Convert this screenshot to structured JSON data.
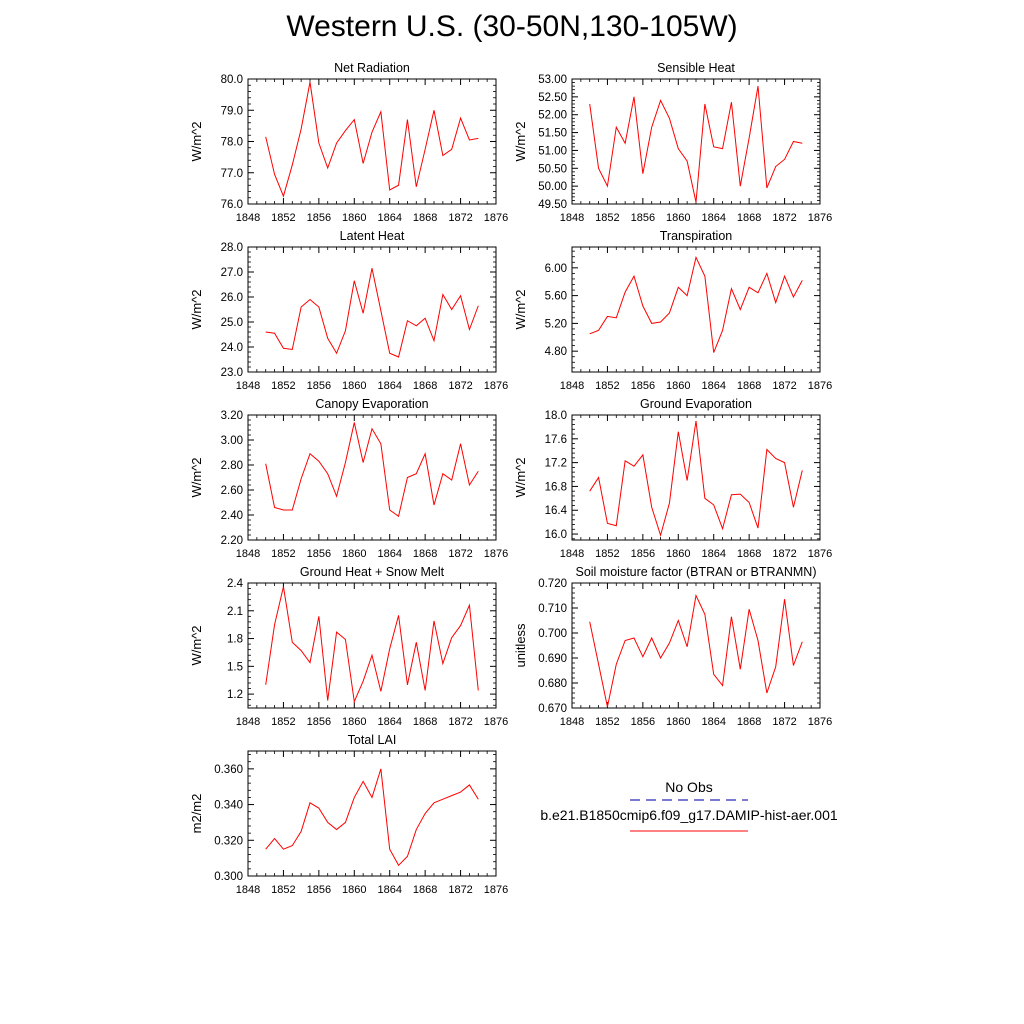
{
  "title": "Western U.S. (30-50N,130-105W)",
  "legend": {
    "obs_label": "No Obs",
    "model_label": "b.e21.B1850cmip6.f09_g17.DAMIP-hist-aer.001",
    "obs_color": "#2b2bb8",
    "model_color": "#ff0000"
  },
  "chart_data": [
    {
      "type": "line",
      "title": "Net Radiation",
      "ylabel": "W/m^2",
      "xlim": [
        1848,
        1876
      ],
      "xticks": [
        1848,
        1852,
        1856,
        1860,
        1864,
        1868,
        1872,
        1876
      ],
      "ylim": [
        76.0,
        80.0
      ],
      "yticks": [
        "76.0",
        "77.0",
        "78.0",
        "79.0",
        "80.0"
      ],
      "x": [
        1850,
        1851,
        1852,
        1853,
        1854,
        1855,
        1856,
        1857,
        1858,
        1859,
        1860,
        1861,
        1862,
        1863,
        1864,
        1865,
        1866,
        1867,
        1868,
        1869,
        1870,
        1871,
        1872,
        1873,
        1874
      ],
      "series": [
        {
          "values": [
            78.15,
            76.95,
            76.25,
            77.25,
            78.4,
            79.9,
            77.95,
            77.15,
            77.95,
            78.35,
            78.7,
            77.3,
            78.3,
            78.95,
            76.45,
            76.6,
            78.7,
            76.55,
            77.75,
            79.0,
            77.55,
            77.75,
            78.75,
            78.05,
            78.1
          ],
          "color": "#ff0000"
        }
      ]
    },
    {
      "type": "line",
      "title": "Sensible Heat",
      "ylabel": "W/m^2",
      "xlim": [
        1848,
        1876
      ],
      "xticks": [
        1848,
        1852,
        1856,
        1860,
        1864,
        1868,
        1872,
        1876
      ],
      "ylim": [
        49.5,
        53.0
      ],
      "yticks": [
        "49.50",
        "50.00",
        "50.50",
        "51.00",
        "51.50",
        "52.00",
        "52.50",
        "53.00"
      ],
      "x": [
        1850,
        1851,
        1852,
        1853,
        1854,
        1855,
        1856,
        1857,
        1858,
        1859,
        1860,
        1861,
        1862,
        1863,
        1864,
        1865,
        1866,
        1867,
        1868,
        1869,
        1870,
        1871,
        1872,
        1873,
        1874
      ],
      "series": [
        {
          "values": [
            52.3,
            50.5,
            50.0,
            51.65,
            51.2,
            52.5,
            50.35,
            51.65,
            52.4,
            51.9,
            51.05,
            50.7,
            49.55,
            52.3,
            51.1,
            51.05,
            52.35,
            50.0,
            51.35,
            52.8,
            49.95,
            50.55,
            50.75,
            51.25,
            51.2
          ],
          "color": "#ff0000"
        }
      ]
    },
    {
      "type": "line",
      "title": "Latent Heat",
      "ylabel": "W/m^2",
      "xlim": [
        1848,
        1876
      ],
      "xticks": [
        1848,
        1852,
        1856,
        1860,
        1864,
        1868,
        1872,
        1876
      ],
      "ylim": [
        23.0,
        28.0
      ],
      "yticks": [
        "23.0",
        "24.0",
        "25.0",
        "26.0",
        "27.0",
        "28.0"
      ],
      "x": [
        1850,
        1851,
        1852,
        1853,
        1854,
        1855,
        1856,
        1857,
        1858,
        1859,
        1860,
        1861,
        1862,
        1863,
        1864,
        1865,
        1866,
        1867,
        1868,
        1869,
        1870,
        1871,
        1872,
        1873,
        1874
      ],
      "series": [
        {
          "values": [
            24.6,
            24.55,
            23.95,
            23.9,
            25.6,
            25.9,
            25.6,
            24.35,
            23.75,
            24.65,
            26.65,
            25.35,
            27.15,
            25.45,
            23.75,
            23.6,
            25.05,
            24.85,
            25.15,
            24.25,
            26.1,
            25.5,
            26.05,
            24.7,
            25.65
          ],
          "color": "#ff0000"
        }
      ]
    },
    {
      "type": "line",
      "title": "Transpiration",
      "ylabel": "W/m^2",
      "xlim": [
        1848,
        1876
      ],
      "xticks": [
        1848,
        1852,
        1856,
        1860,
        1864,
        1868,
        1872,
        1876
      ],
      "ylim": [
        4.5,
        6.3
      ],
      "yticks": [
        "4.80",
        "5.20",
        "5.60",
        "6.00"
      ],
      "x": [
        1850,
        1851,
        1852,
        1853,
        1854,
        1855,
        1856,
        1857,
        1858,
        1859,
        1860,
        1861,
        1862,
        1863,
        1864,
        1865,
        1866,
        1867,
        1868,
        1869,
        1870,
        1871,
        1872,
        1873,
        1874
      ],
      "series": [
        {
          "values": [
            5.05,
            5.1,
            5.3,
            5.28,
            5.65,
            5.88,
            5.45,
            5.2,
            5.22,
            5.35,
            5.72,
            5.6,
            6.15,
            5.88,
            4.78,
            5.1,
            5.7,
            5.4,
            5.72,
            5.64,
            5.92,
            5.5,
            5.88,
            5.58,
            5.82
          ],
          "color": "#ff0000"
        }
      ]
    },
    {
      "type": "line",
      "title": "Canopy Evaporation",
      "ylabel": "W/m^2",
      "xlim": [
        1848,
        1876
      ],
      "xticks": [
        1848,
        1852,
        1856,
        1860,
        1864,
        1868,
        1872,
        1876
      ],
      "ylim": [
        2.2,
        3.2
      ],
      "yticks": [
        "2.20",
        "2.40",
        "2.60",
        "2.80",
        "3.00",
        "3.20"
      ],
      "x": [
        1850,
        1851,
        1852,
        1853,
        1854,
        1855,
        1856,
        1857,
        1858,
        1859,
        1860,
        1861,
        1862,
        1863,
        1864,
        1865,
        1866,
        1867,
        1868,
        1869,
        1870,
        1871,
        1872,
        1873,
        1874
      ],
      "series": [
        {
          "values": [
            2.81,
            2.46,
            2.44,
            2.44,
            2.69,
            2.89,
            2.83,
            2.73,
            2.55,
            2.82,
            3.14,
            2.82,
            3.09,
            2.97,
            2.44,
            2.39,
            2.7,
            2.73,
            2.89,
            2.48,
            2.73,
            2.68,
            2.97,
            2.64,
            2.75
          ],
          "color": "#ff0000"
        }
      ]
    },
    {
      "type": "line",
      "title": "Ground Evaporation",
      "ylabel": "W/m^2",
      "xlim": [
        1848,
        1876
      ],
      "xticks": [
        1848,
        1852,
        1856,
        1860,
        1864,
        1868,
        1872,
        1876
      ],
      "ylim": [
        15.9,
        18.0
      ],
      "yticks": [
        "16.0",
        "16.4",
        "16.8",
        "17.2",
        "17.6",
        "18.0"
      ],
      "x": [
        1850,
        1851,
        1852,
        1853,
        1854,
        1855,
        1856,
        1857,
        1858,
        1859,
        1860,
        1861,
        1862,
        1863,
        1864,
        1865,
        1866,
        1867,
        1868,
        1869,
        1870,
        1871,
        1872,
        1873,
        1874
      ],
      "series": [
        {
          "values": [
            16.72,
            16.95,
            16.18,
            16.14,
            17.23,
            17.14,
            17.33,
            16.45,
            15.98,
            16.52,
            17.72,
            16.9,
            17.9,
            16.6,
            16.49,
            16.09,
            16.66,
            16.67,
            16.53,
            16.1,
            17.42,
            17.27,
            17.2,
            16.45,
            17.07
          ],
          "color": "#ff0000"
        }
      ]
    },
    {
      "type": "line",
      "title": "Ground Heat + Snow Melt",
      "ylabel": "W/m^2",
      "xlim": [
        1848,
        1876
      ],
      "xticks": [
        1848,
        1852,
        1856,
        1860,
        1864,
        1868,
        1872,
        1876
      ],
      "ylim": [
        1.05,
        2.4
      ],
      "yticks": [
        "1.2",
        "1.5",
        "1.8",
        "2.1",
        "2.4"
      ],
      "x": [
        1850,
        1851,
        1852,
        1853,
        1854,
        1855,
        1856,
        1857,
        1858,
        1859,
        1860,
        1861,
        1862,
        1863,
        1864,
        1865,
        1866,
        1867,
        1868,
        1869,
        1870,
        1871,
        1872,
        1873,
        1874
      ],
      "series": [
        {
          "values": [
            1.3,
            1.95,
            2.36,
            1.76,
            1.67,
            1.54,
            2.04,
            1.13,
            1.87,
            1.79,
            1.12,
            1.34,
            1.62,
            1.23,
            1.69,
            2.05,
            1.3,
            1.76,
            1.24,
            1.99,
            1.53,
            1.81,
            1.94,
            2.16,
            1.24
          ],
          "color": "#ff0000"
        }
      ]
    },
    {
      "type": "line",
      "title": "Soil moisture factor (BTRAN or BTRANMN)",
      "ylabel": "unitless",
      "xlim": [
        1848,
        1876
      ],
      "xticks": [
        1848,
        1852,
        1856,
        1860,
        1864,
        1868,
        1872,
        1876
      ],
      "ylim": [
        0.67,
        0.72
      ],
      "yticks": [
        "0.670",
        "0.680",
        "0.690",
        "0.700",
        "0.710",
        "0.720"
      ],
      "x": [
        1850,
        1851,
        1852,
        1853,
        1854,
        1855,
        1856,
        1857,
        1858,
        1859,
        1860,
        1861,
        1862,
        1863,
        1864,
        1865,
        1866,
        1867,
        1868,
        1869,
        1870,
        1871,
        1872,
        1873,
        1874
      ],
      "series": [
        {
          "values": [
            0.7045,
            0.6875,
            0.6705,
            0.6875,
            0.697,
            0.698,
            0.6905,
            0.698,
            0.69,
            0.696,
            0.705,
            0.6945,
            0.715,
            0.7075,
            0.6835,
            0.679,
            0.7065,
            0.6855,
            0.7095,
            0.697,
            0.676,
            0.6865,
            0.7135,
            0.687,
            0.6965
          ],
          "color": "#ff0000"
        }
      ]
    },
    {
      "type": "line",
      "title": "Total LAI",
      "ylabel": "m2/m2",
      "xlim": [
        1848,
        1876
      ],
      "xticks": [
        1848,
        1852,
        1856,
        1860,
        1864,
        1868,
        1872,
        1876
      ],
      "ylim": [
        0.3,
        0.37
      ],
      "yticks": [
        "0.300",
        "0.320",
        "0.340",
        "0.360"
      ],
      "x": [
        1850,
        1851,
        1852,
        1853,
        1854,
        1855,
        1856,
        1857,
        1858,
        1859,
        1860,
        1861,
        1862,
        1863,
        1864,
        1865,
        1866,
        1867,
        1868,
        1869,
        1870,
        1871,
        1872,
        1873,
        1874
      ],
      "series": [
        {
          "values": [
            0.315,
            0.321,
            0.315,
            0.317,
            0.325,
            0.341,
            0.338,
            0.33,
            0.326,
            0.33,
            0.344,
            0.353,
            0.344,
            0.36,
            0.315,
            0.306,
            0.311,
            0.326,
            0.335,
            0.341,
            0.343,
            0.345,
            0.347,
            0.351,
            0.343
          ],
          "color": "#ff0000"
        }
      ]
    }
  ]
}
